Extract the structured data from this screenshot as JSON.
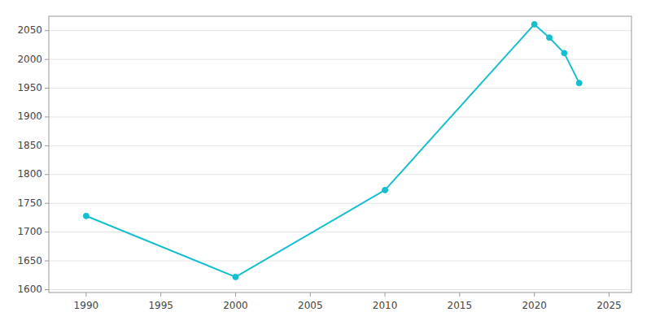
{
  "chart_data": {
    "type": "line",
    "x": [
      1990,
      2000,
      2010,
      2020,
      2021,
      2022,
      2023
    ],
    "values": [
      1728,
      1622,
      1773,
      2061,
      2038,
      2011,
      1959
    ],
    "color": "#17BECF",
    "marker": "circle",
    "xlim": [
      1987.5,
      2026.5
    ],
    "ylim": [
      1595,
      2075
    ],
    "xticks": [
      1990,
      1995,
      2000,
      2005,
      2010,
      2015,
      2020,
      2025
    ],
    "yticks": [
      1600,
      1650,
      1700,
      1750,
      1800,
      1850,
      1900,
      1950,
      2000,
      2050
    ],
    "grid": true
  }
}
